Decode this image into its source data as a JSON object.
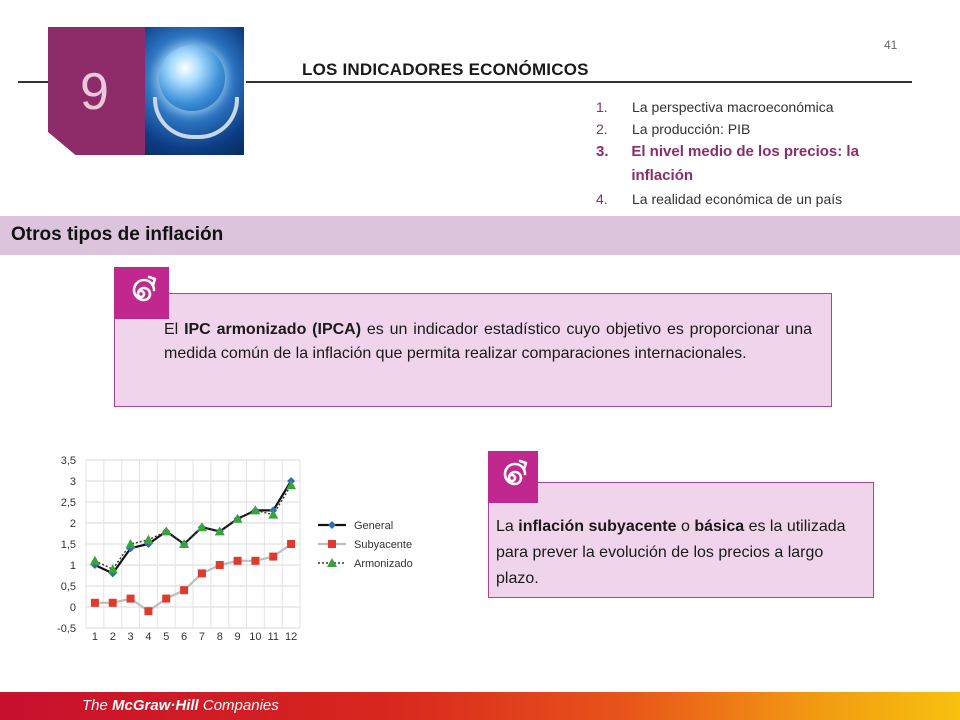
{
  "page_number": "41",
  "chapter": {
    "number": "9",
    "title": "LOS INDICADORES ECONÓMICOS"
  },
  "toc": [
    {
      "num": "1.",
      "label": "La perspectiva macroeconómica"
    },
    {
      "num": "2.",
      "label": "La producción: PIB"
    },
    {
      "num": "3.",
      "label": "El nivel medio de los precios: la inflación"
    },
    {
      "num": "4.",
      "label": "La realidad económica de un país"
    }
  ],
  "section_title": "Otros tipos de inflación",
  "box1": {
    "pre": "El ",
    "bold": "IPC armonizado (IPCA)",
    "post": " es un indicador estadístico cuyo objetivo es proporcionar una medida común de la inflación que permita realizar comparaciones internacionales."
  },
  "box2": {
    "t1": "La ",
    "b1": "inflación subyacente",
    "t2": " o ",
    "b2": "básica",
    "t3": " es la utilizada para prever la evolución de los precios a largo plazo."
  },
  "footer": {
    "the": "The ",
    "brand": "McGraw·Hill",
    "companies": " Companies"
  },
  "colors": {
    "accent": "#8e2c6a",
    "tag": "#c0288f",
    "box_fill": "#f0d4ec",
    "general": "#2e6db4",
    "subyacente": "#e03a2e",
    "armonizado": "#3aa23a"
  },
  "chart_data": {
    "type": "line",
    "categories": [
      "1",
      "2",
      "3",
      "4",
      "5",
      "6",
      "7",
      "8",
      "9",
      "10",
      "11",
      "12"
    ],
    "ylim": [
      -0.5,
      3.5
    ],
    "yticks": [
      "3,5",
      "3",
      "2,5",
      "2",
      "1,5",
      "1",
      "0,5",
      "0",
      "-0,5"
    ],
    "ytick_values": [
      3.5,
      3,
      2.5,
      2,
      1.5,
      1,
      0.5,
      0,
      -0.5
    ],
    "grid": true,
    "legend_position": "right",
    "series": [
      {
        "name": "General",
        "values": [
          1.0,
          0.8,
          1.4,
          1.5,
          1.8,
          1.5,
          1.9,
          1.8,
          2.1,
          2.3,
          2.3,
          3.0
        ],
        "color": "#2e6db4",
        "marker": "diamond"
      },
      {
        "name": "Subyacente",
        "values": [
          0.1,
          0.1,
          0.2,
          -0.1,
          0.2,
          0.4,
          0.8,
          1.0,
          1.1,
          1.1,
          1.2,
          1.5
        ],
        "color": "#e03a2e",
        "marker": "square"
      },
      {
        "name": "Armonizado",
        "values": [
          1.1,
          0.9,
          1.5,
          1.6,
          1.8,
          1.5,
          1.9,
          1.8,
          2.1,
          2.3,
          2.2,
          2.9
        ],
        "color": "#3aa23a",
        "marker": "triangle"
      }
    ]
  }
}
